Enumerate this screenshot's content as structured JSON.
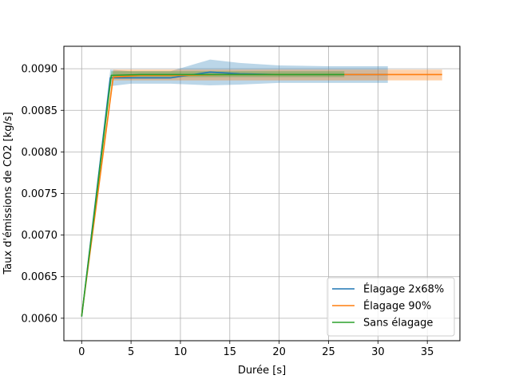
{
  "chart_data": {
    "type": "line",
    "title": "",
    "xlabel": "Durée [s]",
    "ylabel": "Taux d'émissions de CO2 [kg/s]",
    "xlim": [
      -1.8,
      38.3
    ],
    "ylim": [
      0.00573,
      0.00927
    ],
    "x_ticks": [
      0,
      5,
      10,
      15,
      20,
      25,
      30,
      35
    ],
    "y_ticks": [
      0.006,
      0.0065,
      0.007,
      0.0075,
      0.008,
      0.0085,
      0.009
    ],
    "y_tick_labels": [
      "0.0060",
      "0.0065",
      "0.0070",
      "0.0075",
      "0.0080",
      "0.0085",
      "0.0090"
    ],
    "grid": true,
    "legend_position": "lower-right",
    "series": [
      {
        "name": "Élagage 2x68%",
        "color": "#1f77b4",
        "x": [
          0,
          2.9,
          5,
          9,
          13,
          16,
          20,
          25,
          31
        ],
        "y": [
          0.00602,
          0.00889,
          0.00889,
          0.00889,
          0.00896,
          0.00894,
          0.00893,
          0.00893,
          0.00893
        ],
        "band_low": [
          0.00602,
          0.00879,
          0.00882,
          0.00882,
          0.0088,
          0.00881,
          0.00883,
          0.00883,
          0.00883
        ],
        "band_high": [
          0.00602,
          0.00899,
          0.00897,
          0.00897,
          0.00911,
          0.00907,
          0.00904,
          0.00903,
          0.00903
        ]
      },
      {
        "name": "Élagage 90%",
        "color": "#ff7f0e",
        "x": [
          0,
          3.2,
          6,
          10,
          15,
          20,
          25,
          30,
          36.5
        ],
        "y": [
          0.00603,
          0.0089,
          0.00892,
          0.00892,
          0.00893,
          0.00893,
          0.00893,
          0.00893,
          0.00893
        ],
        "band_low": [
          0.00603,
          0.00886,
          0.00886,
          0.00886,
          0.00886,
          0.00886,
          0.00886,
          0.00886,
          0.00886
        ],
        "band_high": [
          0.00603,
          0.00899,
          0.00899,
          0.00899,
          0.00899,
          0.00899,
          0.00899,
          0.00899,
          0.00899
        ]
      },
      {
        "name": "Sans élagage",
        "color": "#2ca02c",
        "x": [
          0,
          3.0,
          6,
          10,
          15,
          20,
          26.6
        ],
        "y": [
          0.00602,
          0.00892,
          0.00893,
          0.00893,
          0.00893,
          0.00893,
          0.00893
        ],
        "band_low": [
          0.00602,
          0.00889,
          0.0089,
          0.0089,
          0.0089,
          0.0089,
          0.0089
        ],
        "band_high": [
          0.00602,
          0.00897,
          0.00897,
          0.00897,
          0.00897,
          0.00897,
          0.00897
        ]
      }
    ]
  }
}
